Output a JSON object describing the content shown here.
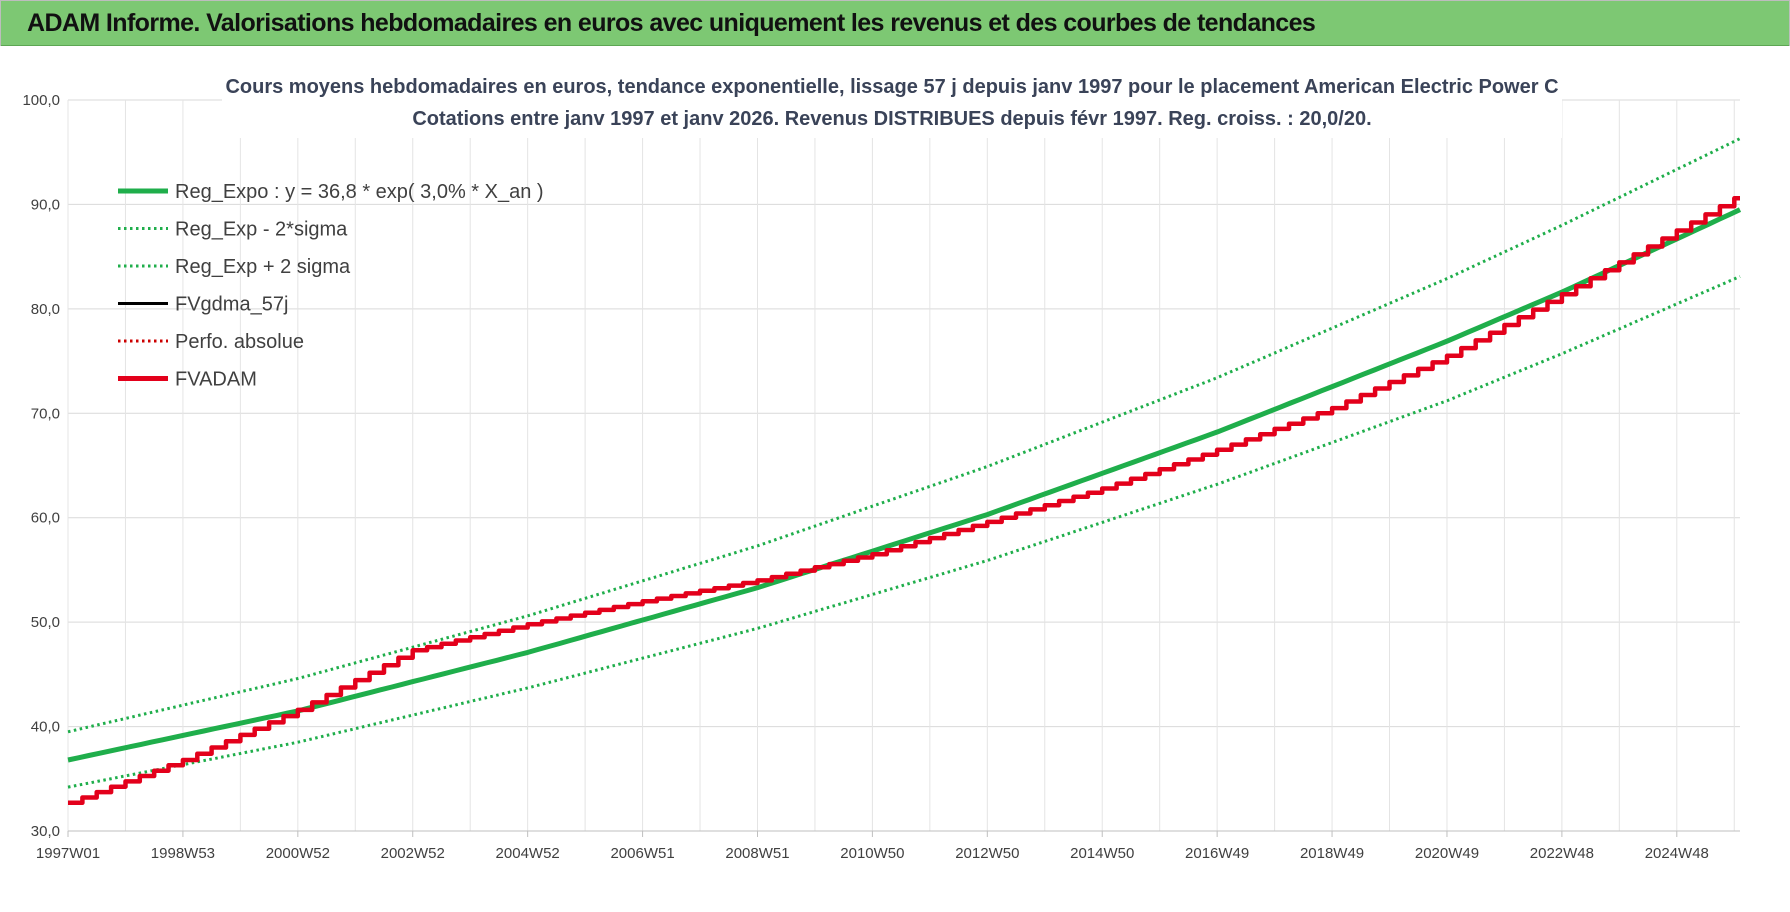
{
  "banner": {
    "title": "ADAM Informe. Valorisations hebdomadaires en euros avec uniquement les revenus et des courbes de tendances"
  },
  "chart_data": {
    "type": "line",
    "title": "Cours moyens hebdomadaires en euros, tendance exponentielle, lissage 57 j depuis janv 1997  pour le placement American Electric Power C",
    "subtitle": "Cotations entre janv 1997 et janv 2026. Revenus DISTRIBUES depuis févr 1997. Reg. croiss. : 20,0/20.",
    "xlabel": "",
    "ylabel": "",
    "ylim": [
      30,
      100
    ],
    "y_ticks": [
      "30,0",
      "40,0",
      "50,0",
      "60,0",
      "70,0",
      "80,0",
      "90,0",
      "100,0"
    ],
    "x_range": [
      1997.0,
      2026.1
    ],
    "x_ticks": [
      {
        "label": "1997W01",
        "year": 1997.0
      },
      {
        "label": "1998W53",
        "year": 1999.0
      },
      {
        "label": "2000W52",
        "year": 2001.0
      },
      {
        "label": "2002W52",
        "year": 2003.0
      },
      {
        "label": "2004W52",
        "year": 2005.0
      },
      {
        "label": "2006W51",
        "year": 2007.0
      },
      {
        "label": "2008W51",
        "year": 2009.0
      },
      {
        "label": "2010W50",
        "year": 2011.0
      },
      {
        "label": "2012W50",
        "year": 2013.0
      },
      {
        "label": "2014W50",
        "year": 2015.0
      },
      {
        "label": "2016W49",
        "year": 2017.0
      },
      {
        "label": "2018W49",
        "year": 2019.0
      },
      {
        "label": "2020W49",
        "year": 2021.0
      },
      {
        "label": "2022W48",
        "year": 2023.0
      },
      {
        "label": "2024W48",
        "year": 2025.0
      }
    ],
    "grid": true,
    "legend_position": "top-left",
    "series": [
      {
        "name": "Reg_Expo : y = 36,8 * exp( 3,0% *  X_an )",
        "color": "#1fae4b",
        "style": "solid-thick",
        "x": [
          1997.0,
          2001.0,
          2005.0,
          2009.0,
          2013.0,
          2017.0,
          2021.0,
          2023.0,
          2026.1
        ],
        "y": [
          36.8,
          41.5,
          47.1,
          53.3,
          60.3,
          68.2,
          76.9,
          81.6,
          89.5
        ]
      },
      {
        "name": "Reg_Exp - 2*sigma",
        "color": "#1fae4b",
        "style": "dotted",
        "x": [
          1997.0,
          2001.0,
          2005.0,
          2009.0,
          2013.0,
          2017.0,
          2021.0,
          2023.0,
          2026.1
        ],
        "y": [
          34.2,
          38.5,
          43.7,
          49.4,
          55.9,
          63.2,
          71.2,
          75.7,
          83.1
        ]
      },
      {
        "name": "Reg_Exp + 2 sigma",
        "color": "#1fae4b",
        "style": "dotted",
        "x": [
          1997.0,
          2001.0,
          2005.0,
          2009.0,
          2013.0,
          2017.0,
          2021.0,
          2023.0,
          2026.1
        ],
        "y": [
          39.5,
          44.6,
          50.6,
          57.3,
          64.9,
          73.4,
          82.9,
          88.0,
          96.3
        ]
      },
      {
        "name": "FVgdma_57j",
        "color": "#000000",
        "style": "solid",
        "x": [],
        "y": []
      },
      {
        "name": "Perfo. absolue",
        "color": "#cc0000",
        "style": "dotted",
        "x": [],
        "y": []
      },
      {
        "name": "FVADAM",
        "color": "#e3001b",
        "style": "solid-thick-stepped",
        "x": [
          1997.0,
          1999.0,
          2001.0,
          2003.0,
          2005.0,
          2007.0,
          2009.0,
          2011.0,
          2013.0,
          2015.0,
          2017.0,
          2019.0,
          2021.0,
          2023.0,
          2025.0,
          2026.1
        ],
        "y": [
          32.7,
          36.8,
          41.6,
          47.3,
          49.8,
          52.0,
          54.0,
          56.5,
          59.6,
          62.8,
          66.5,
          70.5,
          75.5,
          81.4,
          87.5,
          90.9
        ]
      }
    ]
  }
}
